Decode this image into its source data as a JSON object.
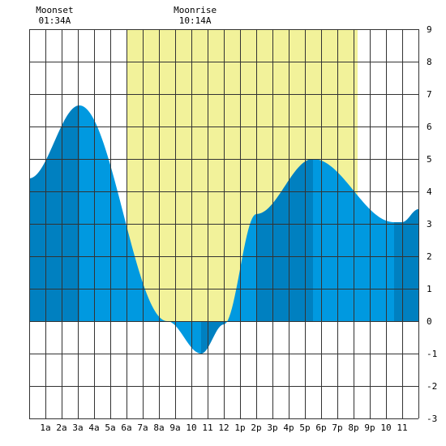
{
  "chart_data": {
    "type": "area",
    "title": "",
    "xlabel": "",
    "ylabel": "",
    "x_unit": "hours",
    "xlim": [
      0,
      24
    ],
    "ylim": [
      -3,
      9
    ],
    "grid": true,
    "x_tick_labels": [
      "1a",
      "2a",
      "3a",
      "4a",
      "5a",
      "6a",
      "7a",
      "8a",
      "9a",
      "10",
      "11",
      "12",
      "1p",
      "2p",
      "3p",
      "4p",
      "5p",
      "6p",
      "7p",
      "8p",
      "9p",
      "10",
      "11"
    ],
    "y_ticks": [
      -3,
      -2,
      -1,
      0,
      1,
      2,
      3,
      4,
      5,
      6,
      7,
      8,
      9
    ],
    "series": [
      {
        "x": [
          0,
          3.1,
          8.5,
          10.6,
          12.0,
          14.0,
          17.5,
          22.5,
          23.0,
          24.0
        ],
        "values": [
          4.4,
          6.65,
          0.0,
          -1.0,
          -0.1,
          3.3,
          5.0,
          3.05,
          3.05,
          3.45
        ]
      }
    ],
    "extremes": [
      {
        "time": 3.1,
        "value": 6.65
      },
      {
        "time": 10.6,
        "value": -1.0
      },
      {
        "time": 17.5,
        "value": 5.0
      },
      {
        "time": 22.6,
        "value": 3.05
      }
    ],
    "daylight": {
      "start": 6.05,
      "end": 20.25
    },
    "dark_bands": [
      [
        0,
        3.1
      ],
      [
        10.6,
        12.0
      ],
      [
        14.0,
        17.5
      ],
      [
        22.5,
        24.0
      ]
    ],
    "colors": {
      "daylight": "#f2f29a",
      "water": "#0099e0",
      "water_dark": "#0080c0",
      "grid": "#333333",
      "background": "#ffffff"
    },
    "annotations": [
      {
        "label": "Moonset",
        "time_text": "01:34A",
        "time": 1.57
      },
      {
        "label": "Moonrise",
        "time_text": "10:14A",
        "time": 10.23
      }
    ]
  }
}
